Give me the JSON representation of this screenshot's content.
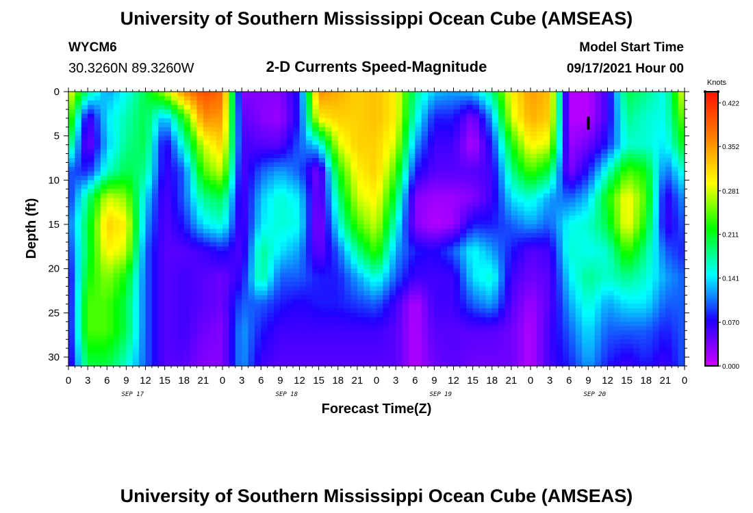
{
  "header": {
    "title": "University of Southern Mississippi Ocean Cube (AMSEAS)",
    "station_id": "WYCM6",
    "coordinates": "30.3260N  89.3260W",
    "plot_title": "2-D Currents Speed-Magnitude",
    "model_start_label": "Model Start Time",
    "model_start_value": "09/17/2021 Hour 00"
  },
  "footer": {
    "title": "University of Southern Mississippi Ocean Cube (AMSEAS)"
  },
  "colors": {
    "palette": [
      "#cc00ff",
      "#2000ff",
      "#00ffff",
      "#00ff00",
      "#ffff00",
      "#ff8000",
      "#ff1000"
    ]
  },
  "chart_data": {
    "type": "heatmap",
    "title": "2-D Currents Speed-Magnitude",
    "xlabel": "Forecast Time(Z)",
    "ylabel": "Depth (ft)",
    "colorbar_label": "Knots",
    "x_range_hours": [
      0,
      96
    ],
    "ylim": [
      0,
      31
    ],
    "y_inverted": true,
    "x_tick_labels": [
      "0",
      "3",
      "6",
      "9",
      "12",
      "15",
      "18",
      "21",
      "0",
      "3",
      "6",
      "9",
      "12",
      "15",
      "18",
      "21",
      "0",
      "3",
      "6",
      "9",
      "12",
      "15",
      "18",
      "21",
      "0",
      "3",
      "6",
      "9",
      "12",
      "15",
      "18",
      "21",
      "0"
    ],
    "date_labels": [
      {
        "label": "SEP 17",
        "hour": 10
      },
      {
        "label": "SEP 18",
        "hour": 34
      },
      {
        "label": "SEP 19",
        "hour": 58
      },
      {
        "label": "SEP 20",
        "hour": 82
      }
    ],
    "y_ticks": [
      0,
      5,
      10,
      15,
      20,
      25,
      30
    ],
    "colorbar_ticks": [
      "0.000",
      "0.070",
      "0.141",
      "0.211",
      "0.281",
      "0.352",
      "0.422"
    ],
    "colorbar_range": [
      0.0,
      0.44
    ],
    "depths": [
      0,
      3,
      6,
      9,
      12,
      15,
      18,
      21,
      24,
      27,
      31
    ],
    "hours": [
      0,
      3,
      6,
      9,
      12,
      15,
      18,
      21,
      24,
      27,
      30,
      33,
      36,
      39,
      42,
      45,
      48,
      51,
      54,
      57,
      60,
      63,
      66,
      69,
      72,
      75,
      78,
      81,
      84,
      87,
      90,
      93,
      96
    ],
    "speed_knots": [
      [
        0.3,
        0.18,
        0.12,
        0.15,
        0.2,
        0.27,
        0.36,
        0.4,
        0.38,
        0.03,
        0.03,
        0.03,
        0.08,
        0.36,
        0.34,
        0.32,
        0.33,
        0.3,
        0.18,
        0.13,
        0.12,
        0.13,
        0.18,
        0.3,
        0.35,
        0.33,
        0.01,
        0.01,
        0.06,
        0.2,
        0.18,
        0.15,
        0.3
      ],
      [
        0.26,
        0.05,
        0.14,
        0.17,
        0.2,
        0.12,
        0.22,
        0.36,
        0.35,
        0.05,
        0.03,
        0.02,
        0.08,
        0.3,
        0.32,
        0.32,
        0.33,
        0.3,
        0.16,
        0.08,
        0.08,
        0.03,
        0.12,
        0.28,
        0.34,
        0.32,
        0.01,
        0.01,
        0.06,
        0.18,
        0.16,
        0.15,
        0.26
      ],
      [
        0.2,
        0.03,
        0.13,
        0.18,
        0.2,
        0.06,
        0.16,
        0.28,
        0.32,
        0.06,
        0.05,
        0.05,
        0.1,
        0.14,
        0.28,
        0.32,
        0.32,
        0.28,
        0.12,
        0.06,
        0.06,
        0.01,
        0.08,
        0.22,
        0.3,
        0.28,
        0.02,
        0.04,
        0.08,
        0.16,
        0.16,
        0.14,
        0.22
      ],
      [
        0.1,
        0.08,
        0.16,
        0.2,
        0.18,
        0.06,
        0.1,
        0.24,
        0.28,
        0.05,
        0.1,
        0.12,
        0.1,
        0.03,
        0.22,
        0.3,
        0.32,
        0.24,
        0.08,
        0.05,
        0.05,
        0.05,
        0.06,
        0.18,
        0.24,
        0.2,
        0.03,
        0.08,
        0.16,
        0.24,
        0.22,
        0.1,
        0.16
      ],
      [
        0.08,
        0.18,
        0.28,
        0.26,
        0.14,
        0.05,
        0.1,
        0.18,
        0.2,
        0.05,
        0.13,
        0.16,
        0.14,
        0.03,
        0.18,
        0.28,
        0.3,
        0.2,
        0.03,
        0.02,
        0.02,
        0.03,
        0.06,
        0.14,
        0.16,
        0.12,
        0.1,
        0.13,
        0.22,
        0.3,
        0.24,
        0.06,
        0.12
      ],
      [
        0.1,
        0.2,
        0.32,
        0.3,
        0.12,
        0.05,
        0.08,
        0.14,
        0.16,
        0.05,
        0.14,
        0.16,
        0.15,
        0.02,
        0.15,
        0.24,
        0.28,
        0.16,
        0.03,
        0.01,
        0.02,
        0.08,
        0.08,
        0.1,
        0.12,
        0.1,
        0.15,
        0.16,
        0.2,
        0.3,
        0.22,
        0.06,
        0.1
      ],
      [
        0.08,
        0.2,
        0.3,
        0.28,
        0.1,
        0.05,
        0.05,
        0.06,
        0.08,
        0.05,
        0.18,
        0.14,
        0.12,
        0.04,
        0.1,
        0.18,
        0.24,
        0.12,
        0.08,
        0.07,
        0.1,
        0.15,
        0.12,
        0.08,
        0.05,
        0.06,
        0.16,
        0.15,
        0.16,
        0.24,
        0.18,
        0.1,
        0.08
      ],
      [
        0.06,
        0.22,
        0.26,
        0.22,
        0.1,
        0.05,
        0.06,
        0.05,
        0.04,
        0.07,
        0.18,
        0.1,
        0.1,
        0.08,
        0.08,
        0.12,
        0.16,
        0.1,
        0.06,
        0.06,
        0.06,
        0.14,
        0.16,
        0.06,
        0.04,
        0.05,
        0.14,
        0.18,
        0.16,
        0.18,
        0.16,
        0.12,
        0.1
      ],
      [
        0.06,
        0.24,
        0.24,
        0.2,
        0.1,
        0.05,
        0.06,
        0.05,
        0.04,
        0.1,
        0.1,
        0.08,
        0.07,
        0.08,
        0.08,
        0.09,
        0.1,
        0.06,
        0.01,
        0.06,
        0.06,
        0.1,
        0.12,
        0.05,
        0.02,
        0.05,
        0.12,
        0.16,
        0.12,
        0.14,
        0.14,
        0.1,
        0.1
      ],
      [
        0.06,
        0.24,
        0.24,
        0.2,
        0.1,
        0.05,
        0.06,
        0.04,
        0.03,
        0.12,
        0.08,
        0.06,
        0.06,
        0.06,
        0.06,
        0.06,
        0.06,
        0.05,
        0.01,
        0.05,
        0.05,
        0.05,
        0.05,
        0.04,
        0.01,
        0.06,
        0.1,
        0.14,
        0.1,
        0.1,
        0.1,
        0.08,
        0.1
      ],
      [
        0.05,
        0.2,
        0.2,
        0.16,
        0.1,
        0.05,
        0.05,
        0.03,
        0.03,
        0.12,
        0.06,
        0.05,
        0.05,
        0.05,
        0.05,
        0.05,
        0.05,
        0.05,
        0.01,
        0.04,
        0.05,
        0.04,
        0.04,
        0.04,
        0.01,
        0.06,
        0.08,
        0.12,
        0.08,
        0.06,
        0.08,
        0.06,
        0.1
      ]
    ],
    "marker": {
      "label": "I",
      "hour": 81,
      "depth": 3.5
    }
  },
  "labels": {
    "x_axis": "Forecast Time(Z)",
    "y_axis": "Depth (ft)",
    "units": "Knots"
  }
}
